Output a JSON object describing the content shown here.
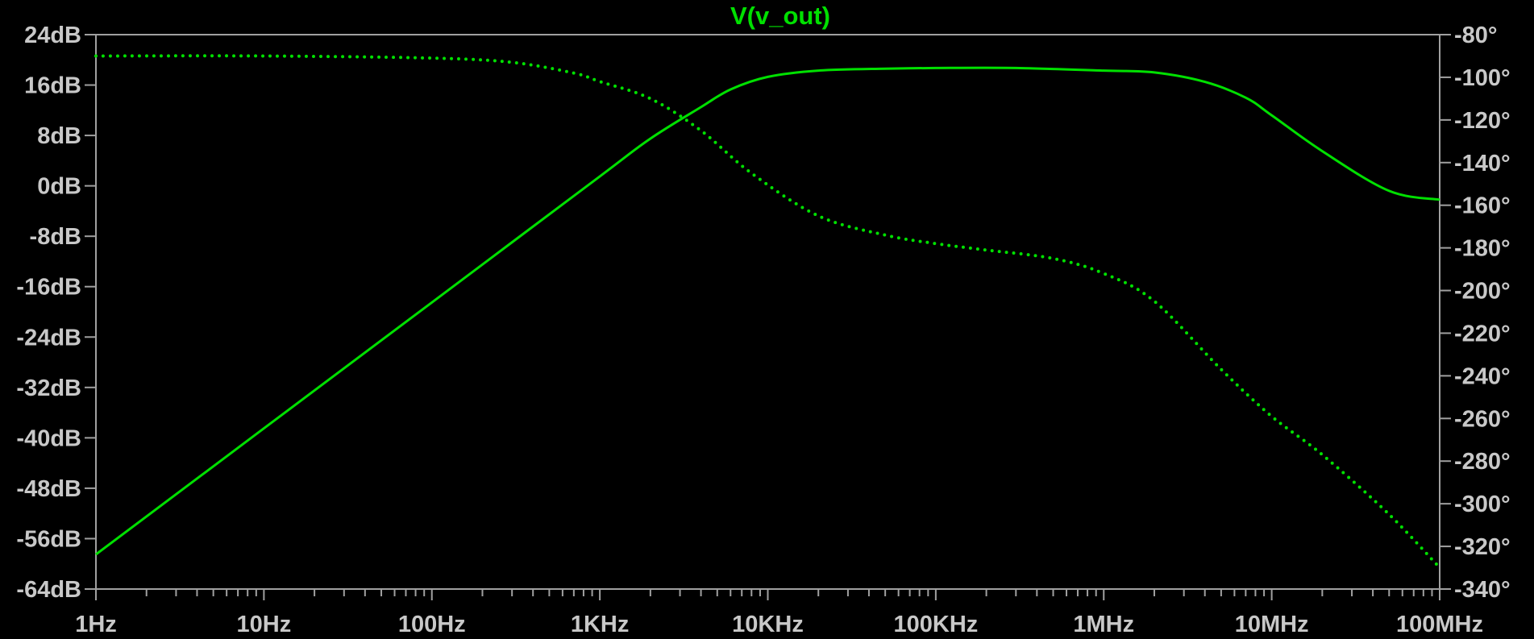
{
  "chart_data": {
    "type": "line",
    "title": "V(v_out)",
    "x_scale": "log",
    "x_range_hz": [
      1,
      100000000
    ],
    "x_ticks": [
      {
        "value": 1,
        "label": "1Hz"
      },
      {
        "value": 10,
        "label": "10Hz"
      },
      {
        "value": 100,
        "label": "100Hz"
      },
      {
        "value": 1000,
        "label": "1KHz"
      },
      {
        "value": 10000,
        "label": "10KHz"
      },
      {
        "value": 100000,
        "label": "100KHz"
      },
      {
        "value": 1000000,
        "label": "1MHz"
      },
      {
        "value": 10000000,
        "label": "10MHz"
      },
      {
        "value": 100000000,
        "label": "100MHz"
      }
    ],
    "y_left_range_db": [
      -64,
      24
    ],
    "y_left_ticks": [
      {
        "value": 24,
        "label": "24dB"
      },
      {
        "value": 16,
        "label": "16dB"
      },
      {
        "value": 8,
        "label": "8dB"
      },
      {
        "value": 0,
        "label": "0dB"
      },
      {
        "value": -8,
        "label": "-8dB"
      },
      {
        "value": -16,
        "label": "-16dB"
      },
      {
        "value": -24,
        "label": "-24dB"
      },
      {
        "value": -32,
        "label": "-32dB"
      },
      {
        "value": -40,
        "label": "-40dB"
      },
      {
        "value": -48,
        "label": "-48dB"
      },
      {
        "value": -56,
        "label": "-56dB"
      },
      {
        "value": -64,
        "label": "-64dB"
      }
    ],
    "y_right_range_deg": [
      -340,
      -80
    ],
    "y_right_ticks": [
      {
        "value": -80,
        "label": "-80°"
      },
      {
        "value": -100,
        "label": "-100°"
      },
      {
        "value": -120,
        "label": "-120°"
      },
      {
        "value": -140,
        "label": "-140°"
      },
      {
        "value": -160,
        "label": "-160°"
      },
      {
        "value": -180,
        "label": "-180°"
      },
      {
        "value": -200,
        "label": "-200°"
      },
      {
        "value": -220,
        "label": "-220°"
      },
      {
        "value": -240,
        "label": "-240°"
      },
      {
        "value": -260,
        "label": "-260°"
      },
      {
        "value": -280,
        "label": "-280°"
      },
      {
        "value": -300,
        "label": "-300°"
      },
      {
        "value": -320,
        "label": "-320°"
      },
      {
        "value": -340,
        "label": "-340°"
      }
    ],
    "grid": false,
    "series": [
      {
        "axis": "left",
        "style": "solid",
        "color": "#00e000",
        "x": [
          1,
          10,
          100,
          1000,
          2000,
          4000,
          6000,
          10000,
          20000,
          50000,
          100000,
          300000,
          1000000,
          2000000,
          4000000,
          7000000,
          10000000,
          20000000,
          50000000,
          100000000
        ],
        "y": [
          -58.5,
          -38.5,
          -18.5,
          1.5,
          7.5,
          12.5,
          15.3,
          17.3,
          18.3,
          18.6,
          18.7,
          18.7,
          18.3,
          18.0,
          16.5,
          14.0,
          11.2,
          5.5,
          -0.8,
          -2.2
        ]
      },
      {
        "axis": "right",
        "style": "dotted",
        "color": "#00e000",
        "x": [
          1,
          10,
          100,
          300,
          700,
          1000,
          2000,
          4000,
          8000,
          20000,
          50000,
          100000,
          200000,
          500000,
          1000000,
          2000000,
          5000000,
          10000000,
          20000000,
          50000000,
          100000000
        ],
        "y": [
          -90,
          -90,
          -91,
          -93,
          -98,
          -102,
          -110,
          -125,
          -145,
          -165,
          -174,
          -178,
          -181,
          -185,
          -192,
          -205,
          -237,
          -259,
          -277,
          -305,
          -330
        ]
      }
    ]
  }
}
